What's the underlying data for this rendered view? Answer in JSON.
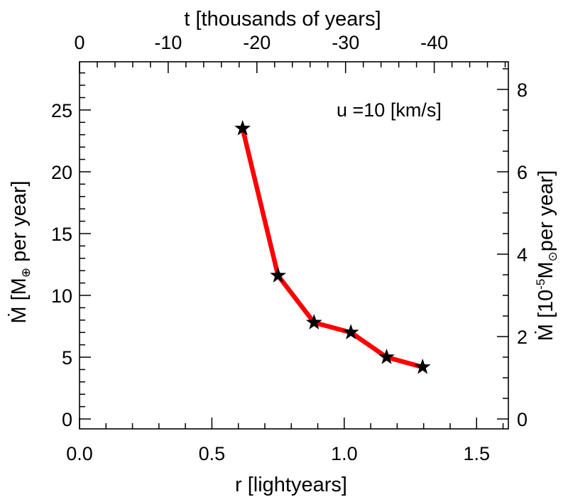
{
  "chart_data": {
    "type": "line",
    "series": [
      {
        "x": [
          0.616,
          0.75,
          0.886,
          1.025,
          1.16,
          1.296
        ],
        "y": [
          23.5,
          11.6,
          7.8,
          7.0,
          5.0,
          4.2
        ],
        "color": "#ff0000",
        "marker": "star"
      }
    ],
    "xlabel": "r [lightyears]",
    "xlim": [
      0.0,
      1.62
    ],
    "xticks": [
      "0.0",
      "0.5",
      "1.0",
      "1.5"
    ],
    "xtick_values": [
      0.0,
      0.5,
      1.0,
      1.5
    ],
    "ylabel": {
      "prefix": "Ṁ [M",
      "subscript": "⊕",
      "suffix": " per year]"
    },
    "ylim": [
      -0.8,
      28.9
    ],
    "yticks": [
      "0",
      "5",
      "10",
      "15",
      "20",
      "25"
    ],
    "ytick_values": [
      0,
      5,
      10,
      15,
      20,
      25
    ],
    "top_axis": {
      "label": "t [thousands of years]",
      "ticks": [
        "0",
        "-10",
        "-20",
        "-30",
        "-40"
      ],
      "tick_positions_r": [
        0.0,
        0.335,
        0.67,
        1.005,
        1.34
      ]
    },
    "right_axis": {
      "label": {
        "prefix": "Ṁ [10",
        "superscript": "-5",
        "mid": "M",
        "subscript": "⊙",
        "suffix": "per year]"
      },
      "ticks": [
        "0",
        "2",
        "4",
        "6",
        "8"
      ],
      "tick_values": [
        0,
        2,
        4,
        6,
        8
      ],
      "scale_factor": 0.3
    },
    "annotation": "u =10 [km/s]",
    "grid": false
  }
}
